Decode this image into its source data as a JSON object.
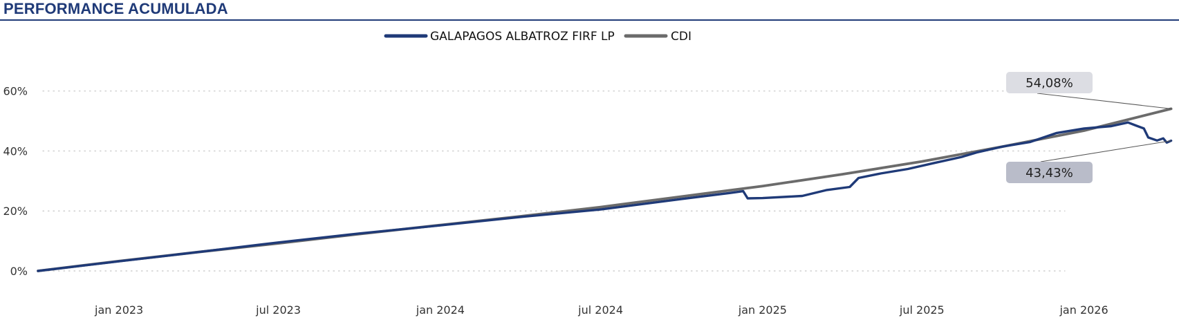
{
  "header": {
    "title": "PERFORMANCE ACUMULADA"
  },
  "chart_data": {
    "type": "line",
    "title": "PERFORMANCE ACUMULADA",
    "legend": {
      "placement": "top-center"
    },
    "grid": {
      "y": true,
      "style": "dotted"
    },
    "x_range": [
      "2022-10-01",
      "2026-04-15"
    ],
    "y_range": [
      0,
      65
    ],
    "x_ticks": [
      {
        "date": "2023-01-01",
        "label": "jan 2023"
      },
      {
        "date": "2023-07-01",
        "label": "jul 2023"
      },
      {
        "date": "2024-01-01",
        "label": "jan 2024"
      },
      {
        "date": "2024-07-01",
        "label": "jul 2024"
      },
      {
        "date": "2025-01-01",
        "label": "jan 2025"
      },
      {
        "date": "2025-07-01",
        "label": "jul 2025"
      },
      {
        "date": "2026-01-01",
        "label": "jan 2026"
      }
    ],
    "y_ticks": [
      {
        "value": 0,
        "label": "0%"
      },
      {
        "value": 20,
        "label": "20%"
      },
      {
        "value": 40,
        "label": "40%"
      },
      {
        "value": 60,
        "label": "60%"
      }
    ],
    "series": [
      {
        "name": "GALAPAGOS ALBATROZ FIRF LP",
        "color": "#1f3a78",
        "points": [
          [
            "2022-10-01",
            0.0
          ],
          [
            "2023-01-01",
            3.2
          ],
          [
            "2023-04-01",
            6.3
          ],
          [
            "2023-07-01",
            9.5
          ],
          [
            "2023-10-01",
            12.5
          ],
          [
            "2024-01-01",
            15.2
          ],
          [
            "2024-04-01",
            18.0
          ],
          [
            "2024-07-01",
            20.5
          ],
          [
            "2024-10-01",
            24.0
          ],
          [
            "2024-11-25",
            26.0
          ],
          [
            "2024-12-10",
            26.6
          ],
          [
            "2024-12-15",
            24.2
          ],
          [
            "2025-01-01",
            24.3
          ],
          [
            "2025-02-15",
            25.0
          ],
          [
            "2025-03-15",
            27.0
          ],
          [
            "2025-04-10",
            28.0
          ],
          [
            "2025-04-20",
            31.0
          ],
          [
            "2025-05-15",
            32.5
          ],
          [
            "2025-06-15",
            34.0
          ],
          [
            "2025-07-15",
            36.0
          ],
          [
            "2025-08-15",
            38.0
          ],
          [
            "2025-09-01",
            39.5
          ],
          [
            "2025-10-01",
            41.5
          ],
          [
            "2025-11-01",
            43.0
          ],
          [
            "2025-12-01",
            46.0
          ],
          [
            "2026-01-01",
            47.5
          ],
          [
            "2026-02-01",
            48.3
          ],
          [
            "2026-02-20",
            49.5
          ],
          [
            "2026-03-01",
            48.5
          ],
          [
            "2026-03-10",
            47.5
          ],
          [
            "2026-03-15",
            44.5
          ],
          [
            "2026-03-25",
            43.5
          ],
          [
            "2026-04-01",
            44.2
          ],
          [
            "2026-04-05",
            42.8
          ],
          [
            "2026-04-10",
            43.43
          ]
        ],
        "last_label": "43,43%"
      },
      {
        "name": "CDI",
        "color": "#6b6b6b",
        "points": [
          [
            "2022-10-01",
            0.0
          ],
          [
            "2023-01-01",
            3.3
          ],
          [
            "2023-04-01",
            6.3
          ],
          [
            "2023-07-01",
            9.2
          ],
          [
            "2023-10-01",
            12.3
          ],
          [
            "2024-01-01",
            15.3
          ],
          [
            "2024-04-01",
            18.2
          ],
          [
            "2024-07-01",
            21.3
          ],
          [
            "2024-10-01",
            24.8
          ],
          [
            "2025-01-01",
            28.3
          ],
          [
            "2025-04-01",
            32.2
          ],
          [
            "2025-07-01",
            36.5
          ],
          [
            "2025-10-01",
            41.5
          ],
          [
            "2026-01-01",
            46.8
          ],
          [
            "2026-04-10",
            54.08
          ]
        ],
        "last_label": "54,08%"
      }
    ]
  }
}
